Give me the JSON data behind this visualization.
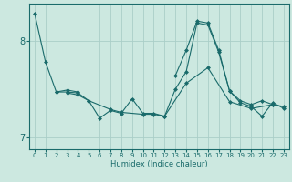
{
  "xlabel": "Humidex (Indice chaleur)",
  "background_color": "#cce8e0",
  "grid_color": "#aacec8",
  "line_color": "#1a6b6b",
  "xlim": [
    -0.5,
    23.5
  ],
  "ylim": [
    6.88,
    8.38
  ],
  "yticks": [
    7,
    8
  ],
  "xticks": [
    0,
    1,
    2,
    3,
    4,
    5,
    6,
    7,
    8,
    9,
    10,
    11,
    12,
    13,
    14,
    15,
    16,
    17,
    18,
    19,
    20,
    21,
    22,
    23
  ],
  "series": [
    [
      8.28,
      7.78,
      7.47,
      7.47,
      7.46,
      7.38,
      7.2,
      7.28,
      7.25,
      7.4,
      7.25,
      7.25,
      7.22,
      7.5,
      7.68,
      8.18,
      8.16,
      7.88,
      7.48,
      7.38,
      7.34,
      7.38,
      7.34,
      7.32
    ],
    [
      null,
      null,
      7.47,
      7.49,
      7.47,
      null,
      null,
      null,
      null,
      null,
      null,
      null,
      null,
      null,
      null,
      null,
      null,
      null,
      null,
      null,
      null,
      null,
      null,
      null
    ],
    [
      null,
      null,
      null,
      7.46,
      7.44,
      7.38,
      null,
      7.29,
      7.26,
      null,
      7.24,
      7.24,
      7.22,
      null,
      7.56,
      null,
      7.72,
      null,
      7.37,
      null,
      7.3,
      null,
      7.34,
      null
    ],
    [
      null,
      null,
      null,
      null,
      null,
      null,
      null,
      null,
      null,
      null,
      null,
      null,
      null,
      7.64,
      7.9,
      8.2,
      8.18,
      7.9,
      7.48,
      7.36,
      7.32,
      7.22,
      7.36,
      7.3
    ]
  ]
}
